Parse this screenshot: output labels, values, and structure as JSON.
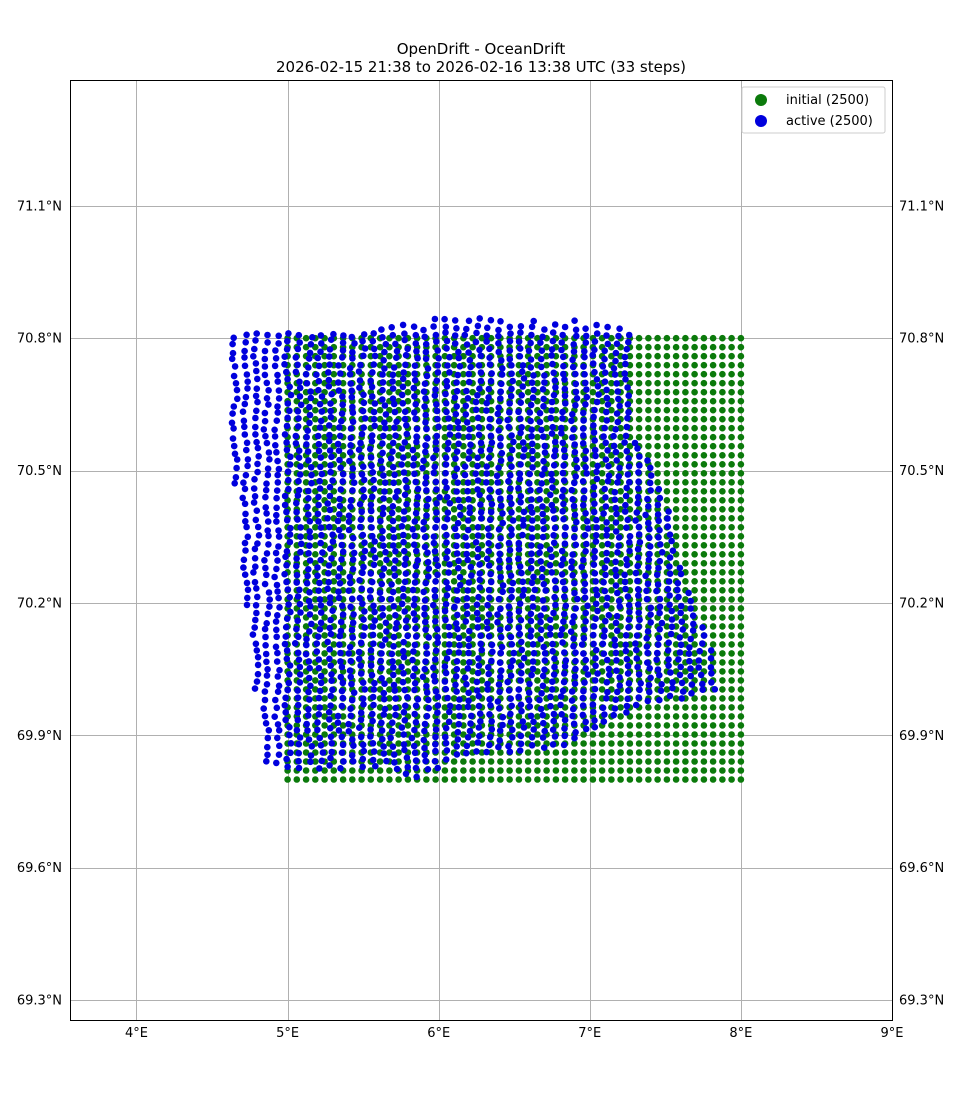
{
  "title": "OpenDrift - OceanDrift",
  "subtitle": "2026-02-15 21:38 to 2026-02-16 13:38 UTC (33 steps)",
  "chart_data": {
    "type": "scatter",
    "title": "OpenDrift - OceanDrift",
    "subtitle": "2026-02-15 21:38 to 2026-02-16 13:38 UTC (33 steps)",
    "xlabel": "",
    "ylabel": "",
    "xlim": [
      3.56,
      9.0
    ],
    "ylim": [
      69.255,
      71.385
    ],
    "x_ticks": [
      4,
      5,
      6,
      7,
      8,
      9
    ],
    "x_tick_labels": [
      "4°E",
      "5°E",
      "6°E",
      "7°E",
      "8°E",
      "9°E"
    ],
    "y_ticks": [
      69.3,
      69.6,
      69.9,
      70.2,
      70.5,
      70.8,
      71.1
    ],
    "y_tick_labels": [
      "69.3°N",
      "69.6°N",
      "69.9°N",
      "70.2°N",
      "70.5°N",
      "70.8°N",
      "71.1°N"
    ],
    "grid": true,
    "legend_position": "top-right",
    "series": [
      {
        "name": "initial (2500)",
        "color": "#0b7a0b",
        "marker": "filled circle",
        "grid_points": {
          "lon_range": [
            5.0,
            8.0
          ],
          "lat_range": [
            69.8,
            70.8
          ],
          "n_lon": 50,
          "n_lat": 50
        }
      },
      {
        "name": "active (2500)",
        "color": "#0000dd",
        "marker": "filled circle",
        "approx_outline_lonlat": [
          [
            4.62,
            70.82
          ],
          [
            5.0,
            70.815
          ],
          [
            5.6,
            70.82
          ],
          [
            6.05,
            70.85
          ],
          [
            6.5,
            70.84
          ],
          [
            7.05,
            70.84
          ],
          [
            7.3,
            70.81
          ],
          [
            7.3,
            70.58
          ],
          [
            7.5,
            70.45
          ],
          [
            7.6,
            70.28
          ],
          [
            7.8,
            70.12
          ],
          [
            7.85,
            69.99
          ],
          [
            7.3,
            69.96
          ],
          [
            6.9,
            69.88
          ],
          [
            6.5,
            69.86
          ],
          [
            6.1,
            69.84
          ],
          [
            5.85,
            69.8
          ],
          [
            5.6,
            69.83
          ],
          [
            5.2,
            69.82
          ],
          [
            4.85,
            69.83
          ],
          [
            4.8,
            69.95
          ],
          [
            4.73,
            70.2
          ],
          [
            4.63,
            70.5
          ],
          [
            4.6,
            70.65
          ]
        ]
      }
    ]
  }
}
